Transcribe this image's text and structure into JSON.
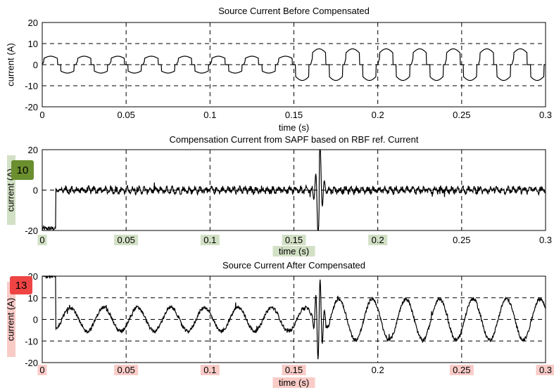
{
  "chart_data": [
    {
      "type": "line",
      "title": "Source Current Before Compensated",
      "xlabel": "time (s)",
      "ylabel": "current (A)",
      "xlim": [
        0,
        0.3
      ],
      "ylim": [
        -20,
        20
      ],
      "xticks": [
        "0",
        "0.05",
        "0.1",
        "0.15",
        "0.2",
        "0.25",
        "0.3"
      ],
      "yticks": [
        "20",
        "10",
        "0",
        "-10",
        "-20"
      ],
      "grid": true,
      "series": [
        {
          "waveform": "quasi-square",
          "frequency_hz": 50,
          "amplitude_segments": [
            {
              "t_start": 0,
              "t_end": 0.15,
              "peak": 4
            },
            {
              "t_start": 0.15,
              "t_end": 0.3,
              "peak": 7.5
            }
          ]
        }
      ]
    },
    {
      "type": "line",
      "title": "Compensation Current from SAPF based on RBF ref. Current",
      "xlabel": "time (s)",
      "ylabel": "current (A)",
      "xlim": [
        0,
        0.3
      ],
      "ylim": [
        -20,
        20
      ],
      "xticks": [
        "0",
        "0.05",
        "0.1",
        "0.15",
        "0.2",
        "0.25",
        "0.3"
      ],
      "yticks": [
        "20",
        "0",
        "-20"
      ],
      "grid": true,
      "series": [
        {
          "waveform": "noisy ripple",
          "baseline": 0,
          "ripple_amplitude": 2,
          "startup_dip_until": 0.008,
          "transient_at": 0.165,
          "transient_min": -20,
          "transient_max": 20
        }
      ],
      "badge": {
        "text": "10",
        "color": "#6b8e2f"
      }
    },
    {
      "type": "line",
      "title": "Source Current After Compensated",
      "xlabel": "time (s)",
      "ylabel": "current (A)",
      "xlim": [
        0,
        0.3
      ],
      "ylim": [
        -20,
        20
      ],
      "xticks": [
        "0",
        "0.05",
        "0.1",
        "0.15",
        "0.2",
        "0.25",
        "0.3"
      ],
      "yticks": [
        "20",
        "10",
        "0",
        "-10",
        "-20"
      ],
      "grid": true,
      "series": [
        {
          "waveform": "noisy sinusoid",
          "frequency_hz": 50,
          "amplitude_segments": [
            {
              "t_start": 0,
              "t_end": 0.15,
              "peak": 5.5
            },
            {
              "t_start": 0.17,
              "t_end": 0.3,
              "peak": 9.5
            }
          ],
          "startup_spike_until": 0.008,
          "transient_at": 0.165
        }
      ],
      "badge": {
        "text": "13",
        "color": "#ef4444"
      }
    }
  ],
  "colors": {
    "line": "#000000",
    "green_badge": "#6b8e2f",
    "red_badge": "#ef4444"
  }
}
